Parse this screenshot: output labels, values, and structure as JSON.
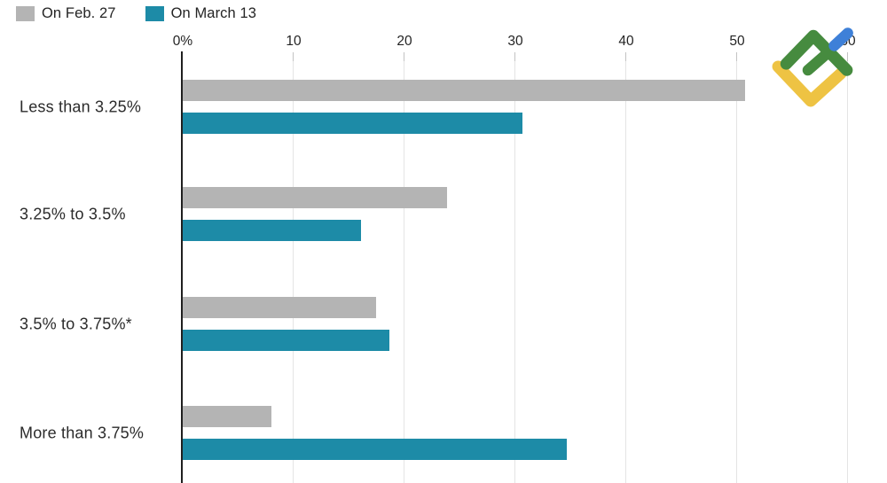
{
  "chart_data": {
    "type": "bar",
    "orientation": "horizontal",
    "title": "",
    "xlabel": "",
    "ylabel": "",
    "categories": [
      "Less than 3.25%",
      "3.25% to 3.5%",
      "3.5% to 3.75%*",
      "More than 3.75%"
    ],
    "series": [
      {
        "name": "On Feb. 27",
        "color": "#b4b4b4",
        "values": [
          50.7,
          23.8,
          17.4,
          8.0
        ]
      },
      {
        "name": "On March 13",
        "color": "#1d8ba7",
        "values": [
          30.6,
          16.1,
          18.6,
          34.6
        ]
      }
    ],
    "xlim": [
      0,
      60
    ],
    "x_ticks": [
      {
        "value": 0,
        "label": "0%"
      },
      {
        "value": 10,
        "label": "10"
      },
      {
        "value": 20,
        "label": "20"
      },
      {
        "value": 30,
        "label": "30"
      },
      {
        "value": 40,
        "label": "40"
      },
      {
        "value": 50,
        "label": "50"
      },
      {
        "value": 60,
        "label": "60"
      }
    ],
    "grid": true,
    "legend_position": "top-left"
  },
  "logo": {
    "name": "litefinance-logo",
    "colors": {
      "green": "#468b3f",
      "yellow": "#eec343",
      "blue": "#3e80d8"
    }
  }
}
